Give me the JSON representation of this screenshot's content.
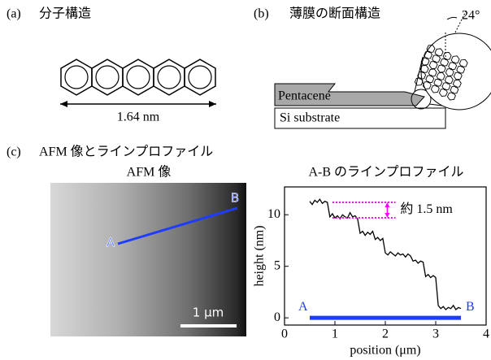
{
  "panels": {
    "a": {
      "label": "(a)",
      "title": "分子構造",
      "dimension": "1.64 nm"
    },
    "b": {
      "label": "(b)",
      "title": "薄膜の断面構造",
      "angle": "24°",
      "layer": "Pentacene",
      "substrate": "Si substrate"
    },
    "c": {
      "label": "(c)",
      "title": "AFM 像とラインプロファイル",
      "image_title": "AFM 像",
      "point_a": "A",
      "point_b": "B",
      "scale_bar": "1 μm"
    }
  },
  "chart_data": {
    "type": "line",
    "title": "A-B のラインプロファイル",
    "x_label": "position (μm)",
    "y_label": "height (nm)",
    "x": [
      0.5,
      0.55,
      0.6,
      0.65,
      0.7,
      0.75,
      0.8,
      0.85,
      0.9,
      0.95,
      1.0,
      1.05,
      1.1,
      1.15,
      1.2,
      1.25,
      1.3,
      1.35,
      1.4,
      1.45,
      1.5,
      1.55,
      1.6,
      1.65,
      1.7,
      1.75,
      1.8,
      1.85,
      1.9,
      1.95,
      2.0,
      2.05,
      2.1,
      2.15,
      2.2,
      2.25,
      2.3,
      2.35,
      2.4,
      2.45,
      2.5,
      2.55,
      2.6,
      2.65,
      2.7,
      2.75,
      2.8,
      2.85,
      2.9,
      2.95,
      3.0,
      3.05,
      3.1,
      3.15,
      3.2,
      3.25,
      3.3,
      3.35,
      3.4,
      3.45,
      3.5
    ],
    "series": [
      {
        "color": "#000000",
        "values": [
          11.3,
          11.0,
          11.4,
          11.2,
          11.5,
          11.1,
          11.3,
          11.2,
          9.8,
          10.1,
          9.7,
          9.9,
          9.6,
          10.0,
          9.8,
          9.7,
          10.2,
          9.8,
          9.9,
          9.6,
          8.2,
          8.4,
          8.0,
          8.3,
          8.1,
          8.4,
          7.6,
          7.8,
          7.5,
          7.7,
          6.3,
          6.1,
          6.4,
          6.2,
          6.0,
          6.3,
          6.1,
          6.2,
          5.9,
          6.2,
          6.0,
          5.5,
          5.6,
          5.3,
          5.5,
          5.4,
          4.0,
          4.2,
          3.9,
          4.1,
          3.9,
          1.2,
          0.9,
          1.1,
          0.8,
          1.0,
          0.9,
          1.2,
          0.8,
          1.0,
          0.9
        ]
      }
    ],
    "xlim": [
      0,
      4
    ],
    "ylim": [
      -0.7,
      12.7
    ],
    "xticks": [
      0,
      1,
      2,
      3,
      4
    ],
    "yticks": [
      0,
      5,
      10
    ],
    "highlight": {
      "xrange": [
        0.5,
        3.5
      ],
      "color": "#1e3cff",
      "start_label": "A",
      "end_label": "B"
    },
    "annotation": {
      "text": "約 1.5 nm",
      "y": [
        11.2,
        9.7
      ],
      "x": [
        0.95,
        2.2
      ],
      "color": "#ff00ff"
    }
  }
}
